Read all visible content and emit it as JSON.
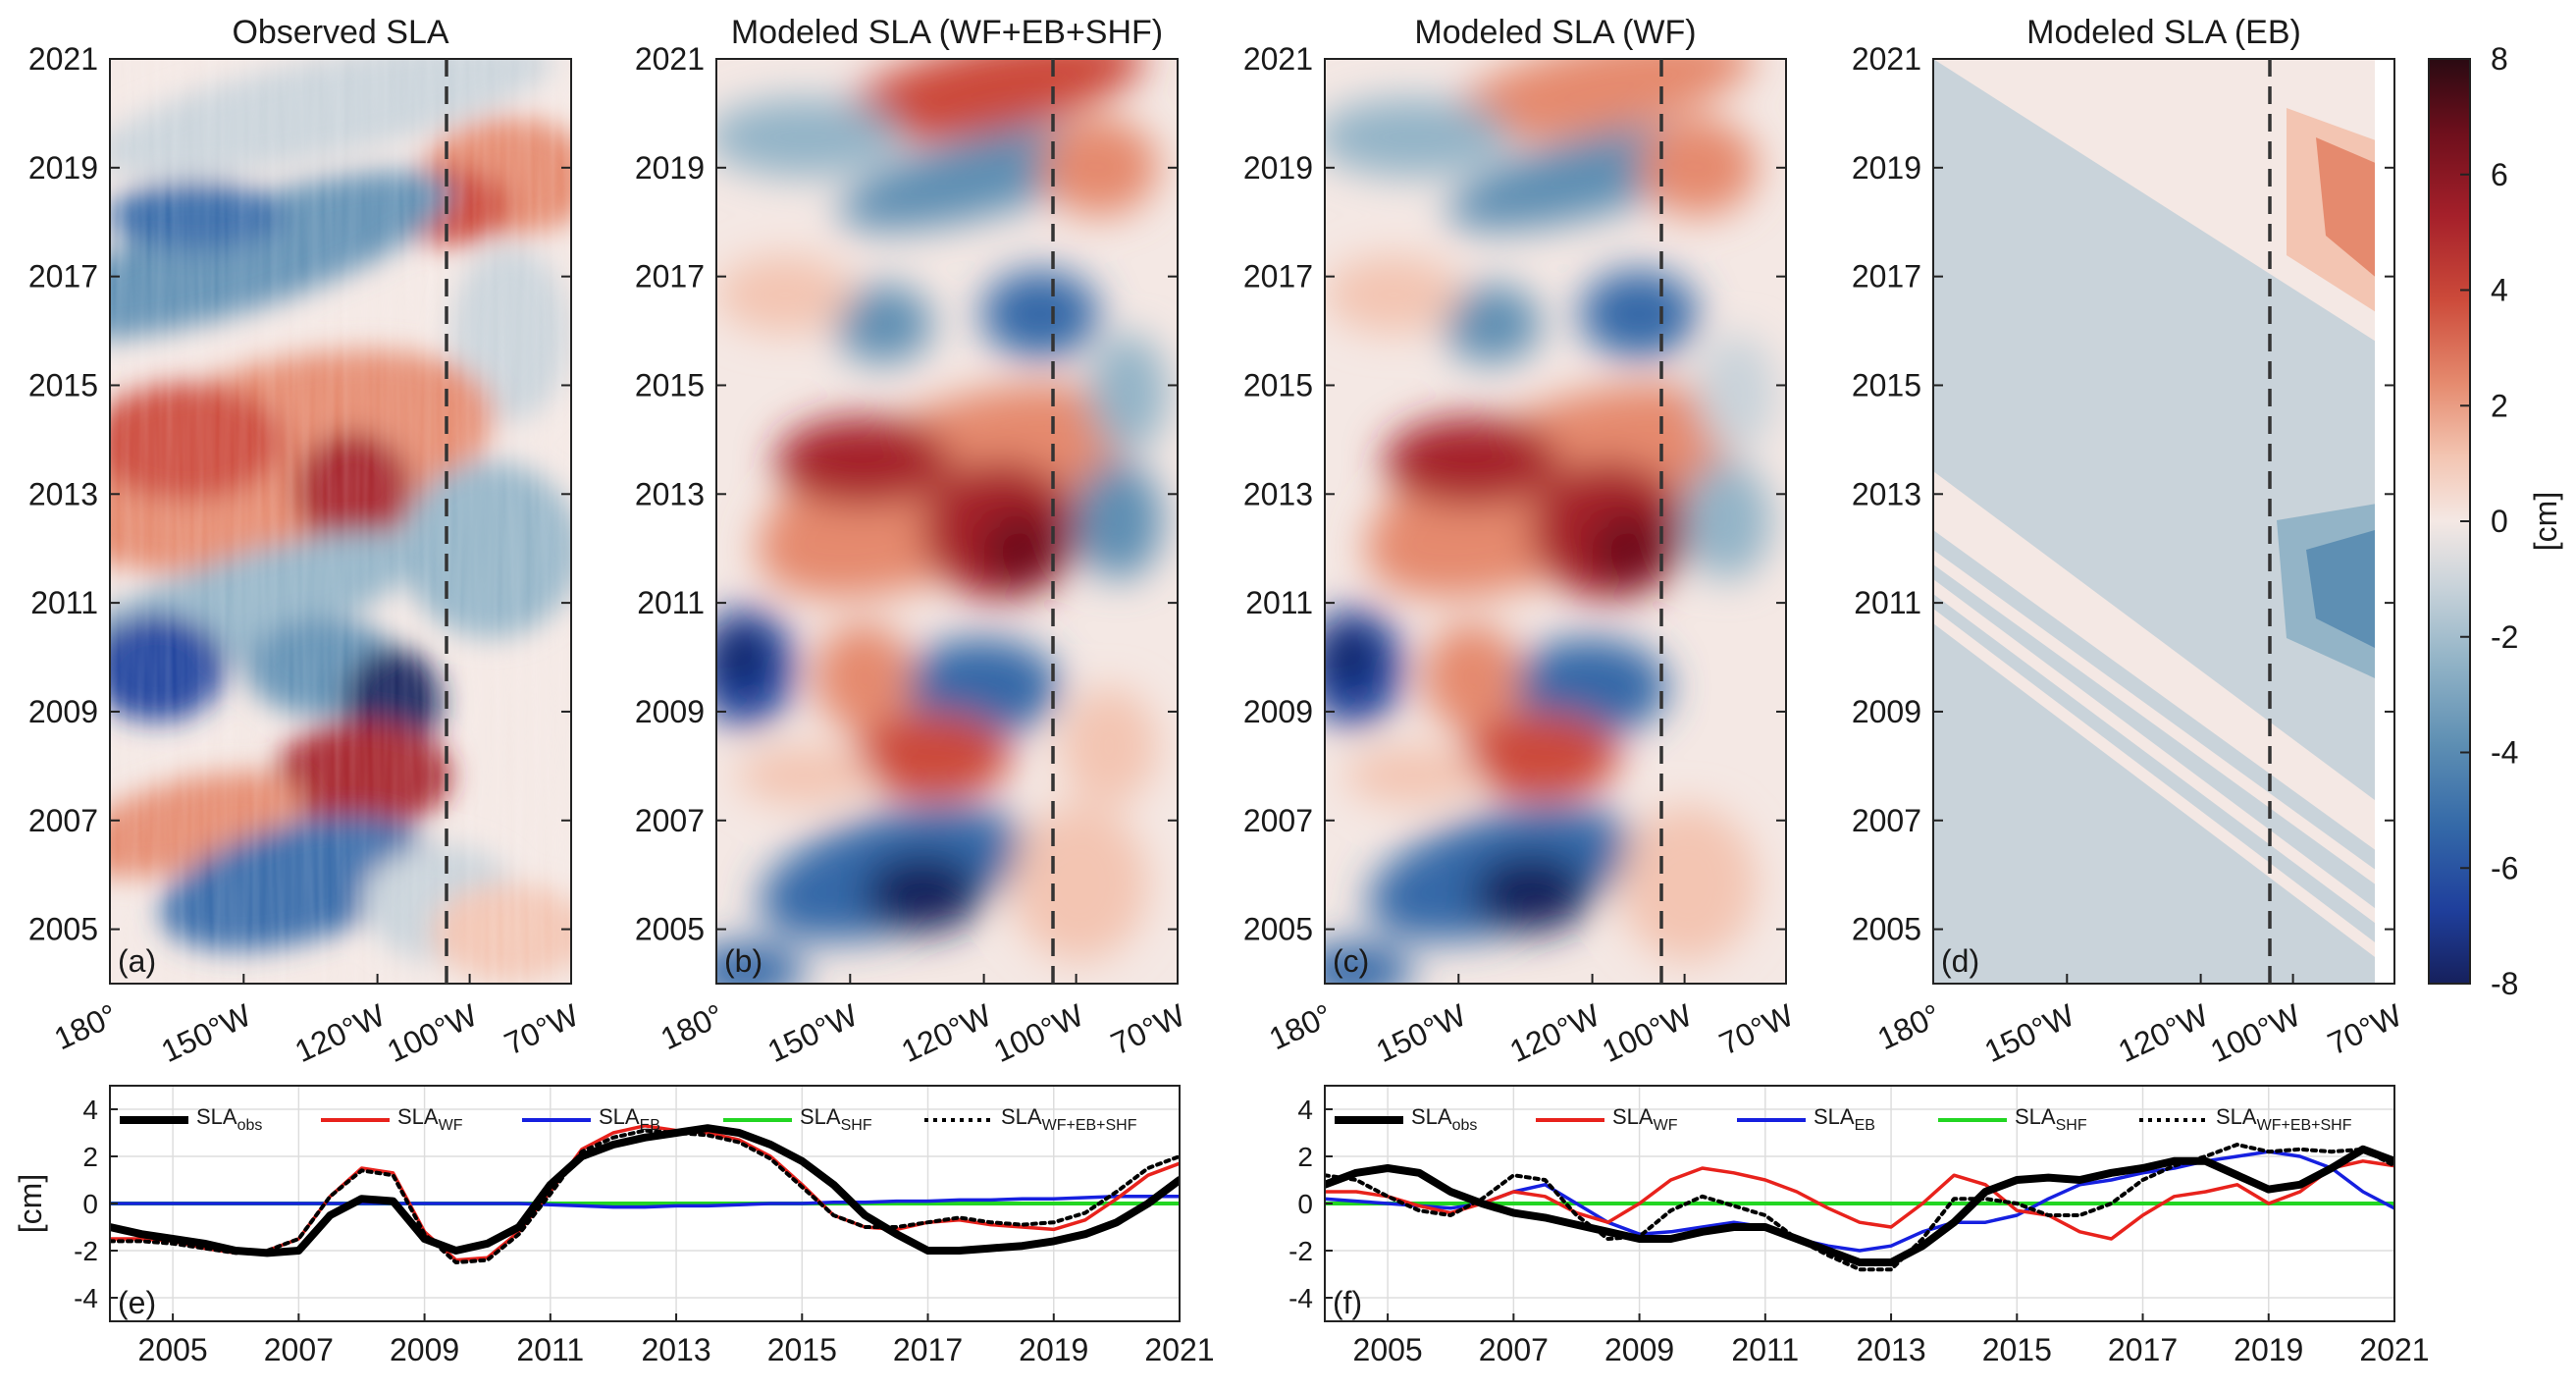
{
  "colors": {
    "series_obs": "#000000",
    "series_wf": "#e8221c",
    "series_eb": "#1620e0",
    "series_shf": "#22d622",
    "series_total": "#000000",
    "dashed_line": "#333333",
    "colormap": [
      "#2a0a12",
      "#6e0f1c",
      "#a5202a",
      "#cc4a3a",
      "#e58a6e",
      "#f3c5b2",
      "#f4e8e4",
      "#c9d3da",
      "#93b4c7",
      "#5e8fb3",
      "#3469a8",
      "#1f3f9c",
      "#16205c"
    ]
  },
  "hovmoller": {
    "y_ticks": [
      "2021",
      "2019",
      "2017",
      "2015",
      "2013",
      "2011",
      "2009",
      "2007",
      "2005"
    ],
    "x_ticks": [
      "180°",
      "150°W",
      "120°W",
      "100°W",
      "70°W"
    ],
    "panels": [
      {
        "id": "a",
        "title": "Observed SLA",
        "label": "(a)"
      },
      {
        "id": "b",
        "title": "Modeled SLA (WF+EB+SHF)",
        "label": "(b)"
      },
      {
        "id": "c",
        "title": "Modeled SLA (WF)",
        "label": "(c)"
      },
      {
        "id": "d",
        "title": "Modeled SLA (EB)",
        "label": "(d)"
      }
    ]
  },
  "colorbar": {
    "ticks": [
      "8",
      "6",
      "4",
      "2",
      "0",
      "-2",
      "-4",
      "-6",
      "-8"
    ],
    "unit_label": "[cm]"
  },
  "timeseries": {
    "y_ticks": [
      "4",
      "2",
      "0",
      "-2",
      "-4"
    ],
    "y_label": "[cm]",
    "x_ticks": [
      "2005",
      "2007",
      "2009",
      "2011",
      "2013",
      "2015",
      "2017",
      "2019",
      "2021"
    ],
    "legend": {
      "obs": {
        "base": "SLA",
        "sub": "obs"
      },
      "wf": {
        "base": "SLA",
        "sub": "WF"
      },
      "eb": {
        "base": "SLA",
        "sub": "EB"
      },
      "shf": {
        "base": "SLA",
        "sub": "SHF"
      },
      "total": {
        "base": "SLA",
        "sub": "WF+EB+SHF"
      }
    },
    "panels": [
      {
        "id": "e",
        "label": "(e)"
      },
      {
        "id": "f",
        "label": "(f)"
      }
    ]
  },
  "chart_data": [
    {
      "type": "heatmap",
      "title": "Observed SLA",
      "xlabel": "",
      "ylabel": "",
      "x_range": [
        "180°",
        "70°W"
      ],
      "ylim": [
        2004,
        2021
      ],
      "colorbar_range_cm": [
        -8,
        8
      ],
      "reference_line_longitude": "95°W",
      "features": [
        {
          "time": 2010.0,
          "longitude": "170°W",
          "sla_cm": -6
        },
        {
          "time": 2009.2,
          "longitude": "100°W",
          "sla_cm": -7
        },
        {
          "time": 2013.8,
          "longitude": "165°W",
          "sla_cm": 5
        },
        {
          "time": 2013.0,
          "longitude": "125°W",
          "sla_cm": 6
        },
        {
          "time": 2008.0,
          "longitude": "120°W",
          "sla_cm": 5
        },
        {
          "time": 2019.8,
          "longitude": "90°W",
          "sla_cm": 4
        },
        {
          "time": 2005.5,
          "longitude": "140°W",
          "sla_cm": -5
        }
      ]
    },
    {
      "type": "heatmap",
      "title": "Modeled SLA (WF+EB+SHF)",
      "x_range": [
        "180°",
        "70°W"
      ],
      "ylim": [
        2004,
        2021
      ],
      "features": [
        {
          "time": 2010.0,
          "longitude": "175°W",
          "sla_cm": -7
        },
        {
          "time": 2009.7,
          "longitude": "115°W",
          "sla_cm": -5
        },
        {
          "time": 2013.2,
          "longitude": "155°W",
          "sla_cm": 5
        },
        {
          "time": 2012.2,
          "longitude": "115°W",
          "sla_cm": 6
        },
        {
          "time": 2005.3,
          "longitude": "135°W",
          "sla_cm": -7
        },
        {
          "time": 2008.5,
          "longitude": "125°W",
          "sla_cm": 4
        },
        {
          "time": 2021.0,
          "longitude": "100°W",
          "sla_cm": 4
        }
      ]
    },
    {
      "type": "heatmap",
      "title": "Modeled SLA (WF)",
      "x_range": [
        "180°",
        "70°W"
      ],
      "ylim": [
        2004,
        2021
      ],
      "features": [
        {
          "time": 2010.0,
          "longitude": "175°W",
          "sla_cm": -7
        },
        {
          "time": 2009.7,
          "longitude": "115°W",
          "sla_cm": -5
        },
        {
          "time": 2013.2,
          "longitude": "155°W",
          "sla_cm": 5
        },
        {
          "time": 2012.0,
          "longitude": "115°W",
          "sla_cm": 6
        },
        {
          "time": 2005.3,
          "longitude": "135°W",
          "sla_cm": -7
        },
        {
          "time": 2008.5,
          "longitude": "125°W",
          "sla_cm": 4
        }
      ]
    },
    {
      "type": "heatmap",
      "title": "Modeled SLA (EB)",
      "x_range": [
        "180°",
        "70°W"
      ],
      "ylim": [
        2004,
        2021
      ],
      "features": [
        {
          "time": 2019.0,
          "longitude": "80°W",
          "sla_cm": 3
        },
        {
          "time": 2011.8,
          "longitude": "85°W",
          "sla_cm": -2
        },
        {
          "time": 2012.0,
          "longitude": "diagonal band",
          "sla_cm": 0.5
        },
        {
          "time": 2008.0,
          "longitude": "background",
          "sla_cm": -1
        }
      ]
    },
    {
      "type": "line",
      "panel": "(e)",
      "xlim": [
        2004,
        2021
      ],
      "ylim": [
        -5,
        5
      ],
      "ylabel": "[cm]",
      "x": [
        2004,
        2004.5,
        2005,
        2005.5,
        2006,
        2006.5,
        2007,
        2007.5,
        2008,
        2008.5,
        2009,
        2009.5,
        2010,
        2010.5,
        2011,
        2011.5,
        2012,
        2012.5,
        2013,
        2013.5,
        2014,
        2014.5,
        2015,
        2015.5,
        2016,
        2016.5,
        2017,
        2017.5,
        2018,
        2018.5,
        2019,
        2019.5,
        2020,
        2020.5,
        2021
      ],
      "series": [
        {
          "name": "SLA_obs",
          "values": [
            -1.0,
            -1.3,
            -1.5,
            -1.7,
            -2.0,
            -2.1,
            -2.0,
            -0.5,
            0.2,
            0.1,
            -1.5,
            -2.0,
            -1.7,
            -1.0,
            0.8,
            2.0,
            2.5,
            2.8,
            3.0,
            3.2,
            3.0,
            2.5,
            1.8,
            0.8,
            -0.5,
            -1.3,
            -2.0,
            -2.0,
            -1.9,
            -1.8,
            -1.6,
            -1.3,
            -0.8,
            0.0,
            1.0
          ]
        },
        {
          "name": "SLA_WF",
          "values": [
            -1.5,
            -1.5,
            -1.6,
            -1.9,
            -2.1,
            -2.0,
            -1.5,
            0.3,
            1.5,
            1.3,
            -1.2,
            -2.4,
            -2.3,
            -1.2,
            0.5,
            2.3,
            3.0,
            3.3,
            3.1,
            3.0,
            2.7,
            2.0,
            0.8,
            -0.5,
            -1.0,
            -1.1,
            -0.8,
            -0.7,
            -0.9,
            -1.0,
            -1.1,
            -0.7,
            0.2,
            1.2,
            1.7
          ]
        },
        {
          "name": "SLA_EB",
          "values": [
            0,
            0,
            0,
            0,
            0,
            0,
            0,
            0,
            0,
            0,
            0,
            0,
            0,
            0,
            -0.05,
            -0.1,
            -0.15,
            -0.15,
            -0.1,
            -0.1,
            -0.05,
            0,
            0,
            0.05,
            0.05,
            0.1,
            0.1,
            0.15,
            0.15,
            0.2,
            0.2,
            0.25,
            0.3,
            0.3,
            0.3
          ]
        },
        {
          "name": "SLA_SHF",
          "values": [
            0,
            0,
            0,
            0,
            0,
            0,
            0,
            0,
            0,
            0,
            0,
            0,
            0,
            0,
            0,
            0,
            0,
            0,
            0,
            0,
            0,
            0,
            0,
            0,
            0,
            0,
            0,
            0,
            0,
            0,
            0,
            0,
            0,
            0,
            0
          ]
        },
        {
          "name": "SLA_WF+EB+SHF",
          "values": [
            -1.6,
            -1.6,
            -1.7,
            -1.9,
            -2.1,
            -2.0,
            -1.5,
            0.3,
            1.4,
            1.2,
            -1.3,
            -2.5,
            -2.4,
            -1.3,
            0.4,
            2.2,
            2.8,
            3.1,
            3.0,
            2.9,
            2.6,
            1.9,
            0.7,
            -0.5,
            -1.0,
            -1.0,
            -0.8,
            -0.6,
            -0.8,
            -0.9,
            -0.8,
            -0.4,
            0.5,
            1.5,
            2.0
          ]
        }
      ]
    },
    {
      "type": "line",
      "panel": "(f)",
      "xlim": [
        2004,
        2021
      ],
      "ylim": [
        -5,
        5
      ],
      "ylabel": "[cm]",
      "x": [
        2004,
        2004.5,
        2005,
        2005.5,
        2006,
        2006.5,
        2007,
        2007.5,
        2008,
        2008.5,
        2009,
        2009.5,
        2010,
        2010.5,
        2011,
        2011.5,
        2012,
        2012.5,
        2013,
        2013.5,
        2014,
        2014.5,
        2015,
        2015.5,
        2016,
        2016.5,
        2017,
        2017.5,
        2018,
        2018.5,
        2019,
        2019.5,
        2020,
        2020.5,
        2021
      ],
      "series": [
        {
          "name": "SLA_obs",
          "values": [
            0.8,
            1.3,
            1.5,
            1.3,
            0.5,
            0.0,
            -0.4,
            -0.6,
            -0.9,
            -1.2,
            -1.5,
            -1.5,
            -1.2,
            -1.0,
            -1.0,
            -1.5,
            -2.0,
            -2.5,
            -2.5,
            -1.8,
            -0.8,
            0.5,
            1.0,
            1.1,
            1.0,
            1.3,
            1.5,
            1.8,
            1.8,
            1.2,
            0.6,
            0.8,
            1.5,
            2.3,
            1.8
          ]
        },
        {
          "name": "SLA_WF",
          "values": [
            0.5,
            0.5,
            0.3,
            -0.1,
            -0.4,
            0.0,
            0.5,
            0.3,
            -0.4,
            -0.8,
            0.0,
            1.0,
            1.5,
            1.3,
            1.0,
            0.5,
            -0.2,
            -0.8,
            -1.0,
            0.0,
            1.2,
            0.8,
            -0.3,
            -0.5,
            -1.2,
            -1.5,
            -0.5,
            0.3,
            0.5,
            0.8,
            0.0,
            0.5,
            1.5,
            1.8,
            1.6
          ]
        },
        {
          "name": "SLA_EB",
          "values": [
            0.2,
            0.1,
            0.0,
            -0.1,
            -0.2,
            0.0,
            0.5,
            0.8,
            0.0,
            -0.8,
            -1.3,
            -1.2,
            -1.0,
            -0.8,
            -1.0,
            -1.5,
            -1.8,
            -2.0,
            -1.8,
            -1.2,
            -0.8,
            -0.8,
            -0.5,
            0.2,
            0.8,
            1.0,
            1.3,
            1.5,
            1.8,
            2.0,
            2.2,
            2.0,
            1.5,
            0.5,
            -0.2
          ]
        },
        {
          "name": "SLA_SHF",
          "values": [
            0,
            0,
            0,
            0,
            0,
            0,
            0,
            0,
            0,
            0,
            0,
            0,
            0,
            0,
            0,
            0,
            0,
            0,
            0,
            0,
            0,
            0,
            0,
            0,
            0,
            0,
            0,
            0,
            0,
            0,
            0,
            0,
            0,
            0,
            0
          ]
        },
        {
          "name": "SLA_WF+EB+SHF",
          "values": [
            1.2,
            1.0,
            0.3,
            -0.3,
            -0.5,
            0.2,
            1.2,
            1.0,
            -0.5,
            -1.5,
            -1.4,
            -0.3,
            0.3,
            -0.1,
            -0.5,
            -1.5,
            -2.2,
            -2.8,
            -2.8,
            -1.5,
            0.2,
            0.2,
            0.0,
            -0.5,
            -0.5,
            0.0,
            1.0,
            1.6,
            2.0,
            2.5,
            2.2,
            2.3,
            2.2,
            2.3,
            1.6
          ]
        }
      ]
    }
  ]
}
